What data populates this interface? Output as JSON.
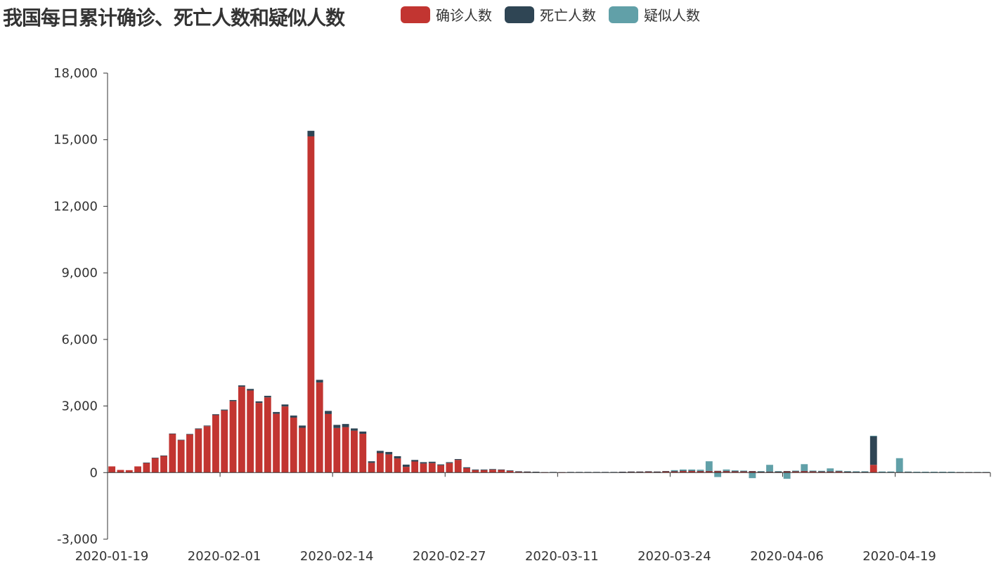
{
  "chart_data": {
    "type": "bar",
    "stacked": true,
    "title": "我国每日累计确诊、死亡人数和疑似人数",
    "legend_position": "top",
    "grid": false,
    "ylim": [
      -3000,
      18000
    ],
    "y_ticks": [
      -3000,
      0,
      3000,
      6000,
      9000,
      12000,
      15000,
      18000
    ],
    "y_tick_labels": [
      "-3,000",
      "0",
      "3,000",
      "6,000",
      "9,000",
      "12,000",
      "15,000",
      "18,000"
    ],
    "x_tick_labels": [
      "2020-01-19",
      "2020-02-01",
      "2020-02-14",
      "2020-02-27",
      "2020-03-11",
      "2020-03-24",
      "2020-04-06",
      "2020-04-19"
    ],
    "categories": [
      "2020-01-19",
      "2020-01-20",
      "2020-01-21",
      "2020-01-22",
      "2020-01-23",
      "2020-01-24",
      "2020-01-25",
      "2020-01-26",
      "2020-01-27",
      "2020-01-28",
      "2020-01-29",
      "2020-01-30",
      "2020-01-31",
      "2020-02-01",
      "2020-02-02",
      "2020-02-03",
      "2020-02-04",
      "2020-02-05",
      "2020-02-06",
      "2020-02-07",
      "2020-02-08",
      "2020-02-09",
      "2020-02-10",
      "2020-02-11",
      "2020-02-12",
      "2020-02-13",
      "2020-02-14",
      "2020-02-15",
      "2020-02-16",
      "2020-02-17",
      "2020-02-18",
      "2020-02-19",
      "2020-02-20",
      "2020-02-21",
      "2020-02-22",
      "2020-02-23",
      "2020-02-24",
      "2020-02-25",
      "2020-02-26",
      "2020-02-27",
      "2020-02-28",
      "2020-02-29",
      "2020-03-01",
      "2020-03-02",
      "2020-03-03",
      "2020-03-04",
      "2020-03-05",
      "2020-03-06",
      "2020-03-07",
      "2020-03-08",
      "2020-03-09",
      "2020-03-10",
      "2020-03-11",
      "2020-03-12",
      "2020-03-13",
      "2020-03-14",
      "2020-03-15",
      "2020-03-16",
      "2020-03-17",
      "2020-03-18",
      "2020-03-19",
      "2020-03-20",
      "2020-03-21",
      "2020-03-22",
      "2020-03-23",
      "2020-03-24",
      "2020-03-25",
      "2020-03-26",
      "2020-03-27",
      "2020-03-28",
      "2020-03-29",
      "2020-03-30",
      "2020-03-31",
      "2020-04-01",
      "2020-04-02",
      "2020-04-03",
      "2020-04-04",
      "2020-04-05",
      "2020-04-06",
      "2020-04-07",
      "2020-04-08",
      "2020-04-09",
      "2020-04-10",
      "2020-04-11",
      "2020-04-12",
      "2020-04-13",
      "2020-04-14",
      "2020-04-15",
      "2020-04-16",
      "2020-04-17",
      "2020-04-18",
      "2020-04-19",
      "2020-04-20",
      "2020-04-21",
      "2020-04-22",
      "2020-04-23",
      "2020-04-24",
      "2020-04-25",
      "2020-04-26",
      "2020-04-27",
      "2020-04-28",
      "2020-04-29"
    ],
    "series": [
      {
        "name": "确诊人数",
        "color": "#c23531",
        "values": [
          280,
          120,
          110,
          280,
          440,
          660,
          760,
          1740,
          1460,
          1720,
          1960,
          2090,
          2590,
          2800,
          3220,
          3870,
          3700,
          3140,
          3390,
          2650,
          2980,
          2480,
          2020,
          15150,
          4060,
          2640,
          2010,
          2050,
          1890,
          1750,
          440,
          880,
          820,
          640,
          260,
          500,
          410,
          430,
          330,
          430,
          570,
          200,
          110,
          110,
          130,
          120,
          80,
          40,
          30,
          20,
          10,
          20,
          10,
          20,
          20,
          20,
          20,
          20,
          20,
          30,
          40,
          40,
          50,
          40,
          60,
          60,
          80,
          80,
          70,
          70,
          70,
          70,
          60,
          60,
          60,
          40,
          40,
          40,
          60,
          60,
          70,
          60,
          50,
          50,
          60,
          40,
          30,
          30,
          350,
          20,
          20,
          20,
          30,
          20,
          20,
          20,
          20,
          20,
          10,
          10,
          10,
          10
        ]
      },
      {
        "name": "死亡人数",
        "color": "#2f4554",
        "values": [
          0,
          0,
          0,
          0,
          10,
          10,
          10,
          20,
          20,
          20,
          30,
          30,
          40,
          40,
          50,
          60,
          70,
          70,
          70,
          80,
          90,
          90,
          100,
          250,
          120,
          140,
          140,
          140,
          100,
          100,
          70,
          100,
          110,
          100,
          100,
          70,
          60,
          60,
          40,
          40,
          40,
          40,
          30,
          30,
          30,
          20,
          20,
          20,
          20,
          20,
          10,
          10,
          10,
          10,
          10,
          10,
          10,
          10,
          10,
          10,
          10,
          10,
          10,
          10,
          10,
          10,
          10,
          10,
          10,
          10,
          10,
          10,
          10,
          10,
          10,
          10,
          10,
          10,
          10,
          10,
          10,
          10,
          10,
          10,
          10,
          10,
          10,
          10,
          1290,
          10,
          10,
          10,
          10,
          10,
          10,
          10,
          10,
          10,
          10,
          10,
          10,
          10
        ]
      },
      {
        "name": "疑似人数",
        "color": "#61a0a8",
        "values": [
          0,
          0,
          0,
          0,
          0,
          0,
          0,
          0,
          0,
          0,
          0,
          0,
          0,
          0,
          0,
          0,
          0,
          0,
          0,
          0,
          0,
          0,
          0,
          0,
          0,
          0,
          0,
          0,
          0,
          0,
          0,
          0,
          0,
          0,
          0,
          0,
          0,
          0,
          0,
          0,
          0,
          0,
          0,
          0,
          0,
          0,
          0,
          0,
          0,
          0,
          0,
          0,
          0,
          0,
          0,
          0,
          0,
          0,
          0,
          0,
          0,
          0,
          0,
          0,
          0,
          40,
          50,
          50,
          50,
          430,
          -200,
          60,
          30,
          20,
          -250,
          20,
          300,
          20,
          -280,
          20,
          300,
          20,
          20,
          130,
          20,
          20,
          20,
          20,
          20,
          20,
          20,
          620,
          10,
          10,
          10,
          10,
          10,
          10,
          10,
          10,
          10,
          10
        ]
      }
    ]
  }
}
